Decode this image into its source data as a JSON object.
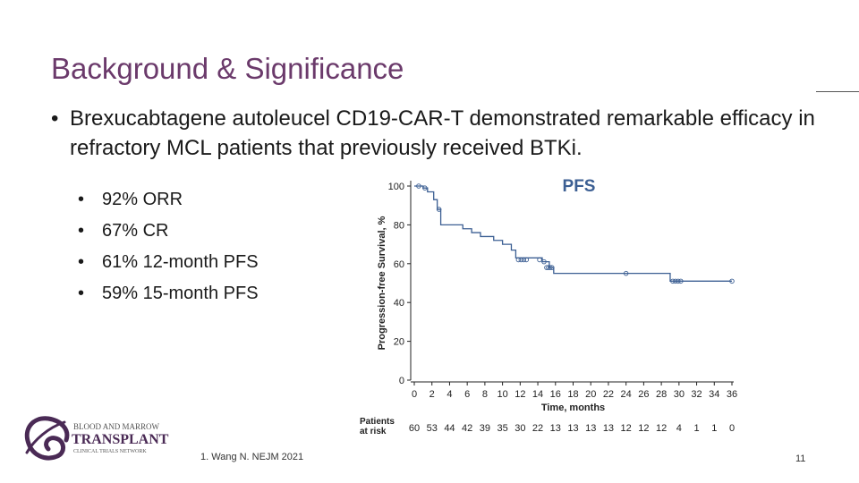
{
  "slide": {
    "title": "Background & Significance",
    "bullet_char": "•",
    "main_bullet": "Brexucabtagene autoleucel CD19-CAR-T demonstrated remarkable efficacy in refractory MCL patients that previously received BTKi.",
    "sub_bullets": [
      "92% ORR",
      "67% CR",
      "61% 12-month PFS",
      "59% 15-month PFS"
    ],
    "reference": "1.   Wang N. NEJM 2021",
    "page_number": "11"
  },
  "logo": {
    "line1": "BLOOD AND MARROW",
    "line2": "TRANSPLANT",
    "line3": "CLINICAL TRIALS NETWORK"
  },
  "colors": {
    "title": "#6b3a6b",
    "curve": "#3c5f93",
    "chart_title": "#3c5f93"
  },
  "chart_data": {
    "type": "line",
    "title": "PFS",
    "xlabel": "Time, months",
    "ylabel": "Progression-free Survival, %",
    "xlim": [
      0,
      36
    ],
    "ylim": [
      0,
      100
    ],
    "x_ticks": [
      0,
      2,
      4,
      6,
      8,
      10,
      12,
      14,
      16,
      18,
      20,
      22,
      24,
      26,
      28,
      30,
      32,
      34,
      36
    ],
    "y_ticks": [
      0,
      20,
      40,
      60,
      80,
      100
    ],
    "series": [
      {
        "name": "PFS",
        "steps": [
          [
            0,
            100
          ],
          [
            1,
            99
          ],
          [
            1.5,
            97
          ],
          [
            2.2,
            93
          ],
          [
            2.6,
            88
          ],
          [
            3,
            80
          ],
          [
            5.5,
            78
          ],
          [
            6.5,
            76
          ],
          [
            7.5,
            74
          ],
          [
            9,
            72
          ],
          [
            10,
            70
          ],
          [
            11,
            67
          ],
          [
            11.5,
            63
          ],
          [
            14.5,
            61
          ],
          [
            15.3,
            58
          ],
          [
            15.8,
            55
          ],
          [
            29,
            51
          ],
          [
            36,
            51
          ]
        ],
        "censor_points": [
          [
            0.5,
            100
          ],
          [
            1.2,
            99
          ],
          [
            2.8,
            88
          ],
          [
            11.8,
            62
          ],
          [
            12.1,
            62
          ],
          [
            12.4,
            62
          ],
          [
            12.7,
            62
          ],
          [
            14.2,
            62
          ],
          [
            14.7,
            61
          ],
          [
            15,
            58
          ],
          [
            15.2,
            58
          ],
          [
            15.4,
            58
          ],
          [
            15.6,
            58
          ],
          [
            24,
            55
          ],
          [
            29.3,
            51
          ],
          [
            29.6,
            51
          ],
          [
            29.9,
            51
          ],
          [
            30.2,
            51
          ],
          [
            36,
            51
          ]
        ]
      }
    ],
    "at_risk_label_line1": "Patients",
    "at_risk_label_line2": "at risk",
    "at_risk": [
      60,
      53,
      44,
      42,
      39,
      35,
      30,
      22,
      13,
      13,
      13,
      13,
      12,
      12,
      12,
      4,
      1,
      1,
      0
    ]
  }
}
